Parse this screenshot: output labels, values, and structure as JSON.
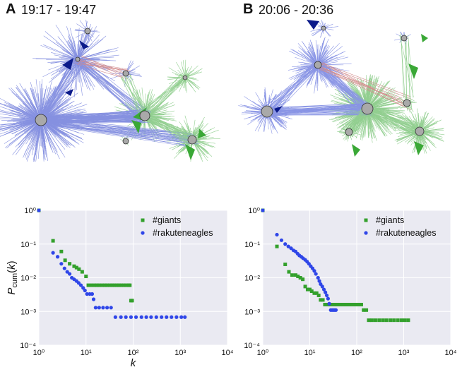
{
  "panels": [
    {
      "label": "A",
      "time": "19:17 - 19:47"
    },
    {
      "label": "B",
      "time": "20:06 - 20:36"
    }
  ],
  "colors": {
    "giants": "#33a02c",
    "rakuteneagles": "#2f46e8",
    "hub": "#a9a9a9",
    "dark_blue": "#0b1a8a",
    "plot_bg": "#eaeaf2"
  },
  "chart_data": [
    {
      "type": "scatter",
      "xscale": "log",
      "yscale": "log",
      "xlim": [
        1,
        10000
      ],
      "ylim": [
        0.0001,
        1
      ],
      "xlabel": "k",
      "ylabel": "Pcum(k)",
      "xticks": [
        "10^0",
        "10^1",
        "10^2",
        "10^3",
        "10^4"
      ],
      "yticks": [
        "10^0",
        "10^-1",
        "10^-2",
        "10^-3",
        "10^-4"
      ],
      "legend": "top-right",
      "series": [
        {
          "name": "#giants",
          "marker": "square",
          "points": [
            [
              1,
              1
            ],
            [
              2,
              0.125
            ],
            [
              3,
              0.06
            ],
            [
              3.6,
              0.033
            ],
            [
              4.5,
              0.026
            ],
            [
              5.6,
              0.022
            ],
            [
              6.3,
              0.02
            ],
            [
              7.1,
              0.018
            ],
            [
              8.3,
              0.015
            ],
            [
              10,
              0.011
            ],
            [
              11.2,
              0.006
            ],
            [
              13,
              0.006
            ],
            [
              15,
              0.006
            ],
            [
              17,
              0.006
            ],
            [
              19,
              0.006
            ],
            [
              22,
              0.006
            ],
            [
              25,
              0.006
            ],
            [
              28,
              0.006
            ],
            [
              32,
              0.006
            ],
            [
              36,
              0.006
            ],
            [
              40,
              0.006
            ],
            [
              45,
              0.006
            ],
            [
              50,
              0.006
            ],
            [
              56,
              0.006
            ],
            [
              63,
              0.006
            ],
            [
              71,
              0.006
            ],
            [
              80,
              0.006
            ],
            [
              85,
              0.006
            ],
            [
              90,
              0.0021
            ],
            [
              95,
              0.0021
            ]
          ]
        },
        {
          "name": "#rakuteneagles",
          "marker": "circle",
          "points": [
            [
              1,
              1
            ],
            [
              2,
              0.055
            ],
            [
              2.5,
              0.042
            ],
            [
              3,
              0.026
            ],
            [
              3.5,
              0.019
            ],
            [
              4,
              0.015
            ],
            [
              4.5,
              0.013
            ],
            [
              5,
              0.01
            ],
            [
              5.6,
              0.009
            ],
            [
              6.3,
              0.008
            ],
            [
              7,
              0.007
            ],
            [
              7.8,
              0.006
            ],
            [
              8.7,
              0.005
            ],
            [
              9.5,
              0.0042
            ],
            [
              10.5,
              0.0033
            ],
            [
              12,
              0.0033
            ],
            [
              13.5,
              0.0033
            ],
            [
              14.5,
              0.0023
            ],
            [
              16,
              0.0013
            ],
            [
              19,
              0.0013
            ],
            [
              23,
              0.0013
            ],
            [
              28,
              0.0013
            ],
            [
              34,
              0.0013
            ],
            [
              42,
              0.00068
            ],
            [
              55,
              0.00068
            ],
            [
              70,
              0.00068
            ],
            [
              90,
              0.00068
            ],
            [
              115,
              0.00068
            ],
            [
              150,
              0.00068
            ],
            [
              190,
              0.00068
            ],
            [
              240,
              0.00068
            ],
            [
              310,
              0.00068
            ],
            [
              400,
              0.00068
            ],
            [
              510,
              0.00068
            ],
            [
              650,
              0.00068
            ],
            [
              830,
              0.00068
            ],
            [
              1050,
              0.00068
            ],
            [
              1250,
              0.00068
            ]
          ]
        }
      ]
    },
    {
      "type": "scatter",
      "xscale": "log",
      "yscale": "log",
      "xlim": [
        1,
        10000
      ],
      "ylim": [
        0.0001,
        1
      ],
      "xlabel": "",
      "ylabel": "",
      "xticks": [
        "10^0",
        "10^1",
        "10^2",
        "10^3",
        "10^4"
      ],
      "yticks": [
        "10^0",
        "10^-1",
        "10^-2",
        "10^-3",
        "10^-4"
      ],
      "legend": "top-right",
      "series": [
        {
          "name": "#giants",
          "marker": "square",
          "points": [
            [
              1,
              1
            ],
            [
              2,
              0.085
            ],
            [
              3,
              0.025
            ],
            [
              3.6,
              0.015
            ],
            [
              4.2,
              0.012
            ],
            [
              5,
              0.012
            ],
            [
              5.6,
              0.011
            ],
            [
              6.3,
              0.01
            ],
            [
              7.1,
              0.009
            ],
            [
              8,
              0.0055
            ],
            [
              9,
              0.0045
            ],
            [
              10,
              0.0045
            ],
            [
              11,
              0.004
            ],
            [
              12.5,
              0.0035
            ],
            [
              14,
              0.0035
            ],
            [
              15.5,
              0.003
            ],
            [
              17,
              0.0022
            ],
            [
              19,
              0.0022
            ],
            [
              21,
              0.0016
            ],
            [
              24,
              0.0016
            ],
            [
              28,
              0.0016
            ],
            [
              33,
              0.0016
            ],
            [
              38,
              0.0016
            ],
            [
              45,
              0.0016
            ],
            [
              52,
              0.0016
            ],
            [
              60,
              0.0016
            ],
            [
              70,
              0.0016
            ],
            [
              82,
              0.0016
            ],
            [
              95,
              0.0016
            ],
            [
              110,
              0.0016
            ],
            [
              125,
              0.0016
            ],
            [
              140,
              0.0011
            ],
            [
              160,
              0.0011
            ],
            [
              180,
              0.00055
            ],
            [
              210,
              0.00055
            ],
            [
              250,
              0.00055
            ],
            [
              300,
              0.00055
            ],
            [
              360,
              0.00055
            ],
            [
              430,
              0.00055
            ],
            [
              520,
              0.00055
            ],
            [
              620,
              0.00055
            ],
            [
              750,
              0.00055
            ],
            [
              900,
              0.00055
            ],
            [
              1050,
              0.00055
            ],
            [
              1250,
              0.00055
            ]
          ]
        },
        {
          "name": "#rakuteneagles",
          "marker": "circle",
          "points": [
            [
              1,
              1
            ],
            [
              2,
              0.19
            ],
            [
              2.5,
              0.13
            ],
            [
              3,
              0.1
            ],
            [
              3.5,
              0.085
            ],
            [
              4,
              0.075
            ],
            [
              4.5,
              0.065
            ],
            [
              5,
              0.06
            ],
            [
              5.5,
              0.052
            ],
            [
              6,
              0.046
            ],
            [
              6.6,
              0.042
            ],
            [
              7.2,
              0.038
            ],
            [
              8,
              0.034
            ],
            [
              8.8,
              0.03
            ],
            [
              9.6,
              0.026
            ],
            [
              10.5,
              0.022
            ],
            [
              11.5,
              0.019
            ],
            [
              12.5,
              0.016
            ],
            [
              13.5,
              0.013
            ],
            [
              15,
              0.01
            ],
            [
              16,
              0.008
            ],
            [
              17,
              0.0065
            ],
            [
              18.5,
              0.0055
            ],
            [
              20,
              0.0045
            ],
            [
              21.5,
              0.0037
            ],
            [
              23,
              0.003
            ],
            [
              24.5,
              0.0024
            ],
            [
              26,
              0.0017
            ],
            [
              28,
              0.0011
            ],
            [
              30,
              0.0011
            ],
            [
              32,
              0.0011
            ],
            [
              34,
              0.0011
            ],
            [
              36,
              0.0011
            ]
          ]
        }
      ]
    }
  ]
}
